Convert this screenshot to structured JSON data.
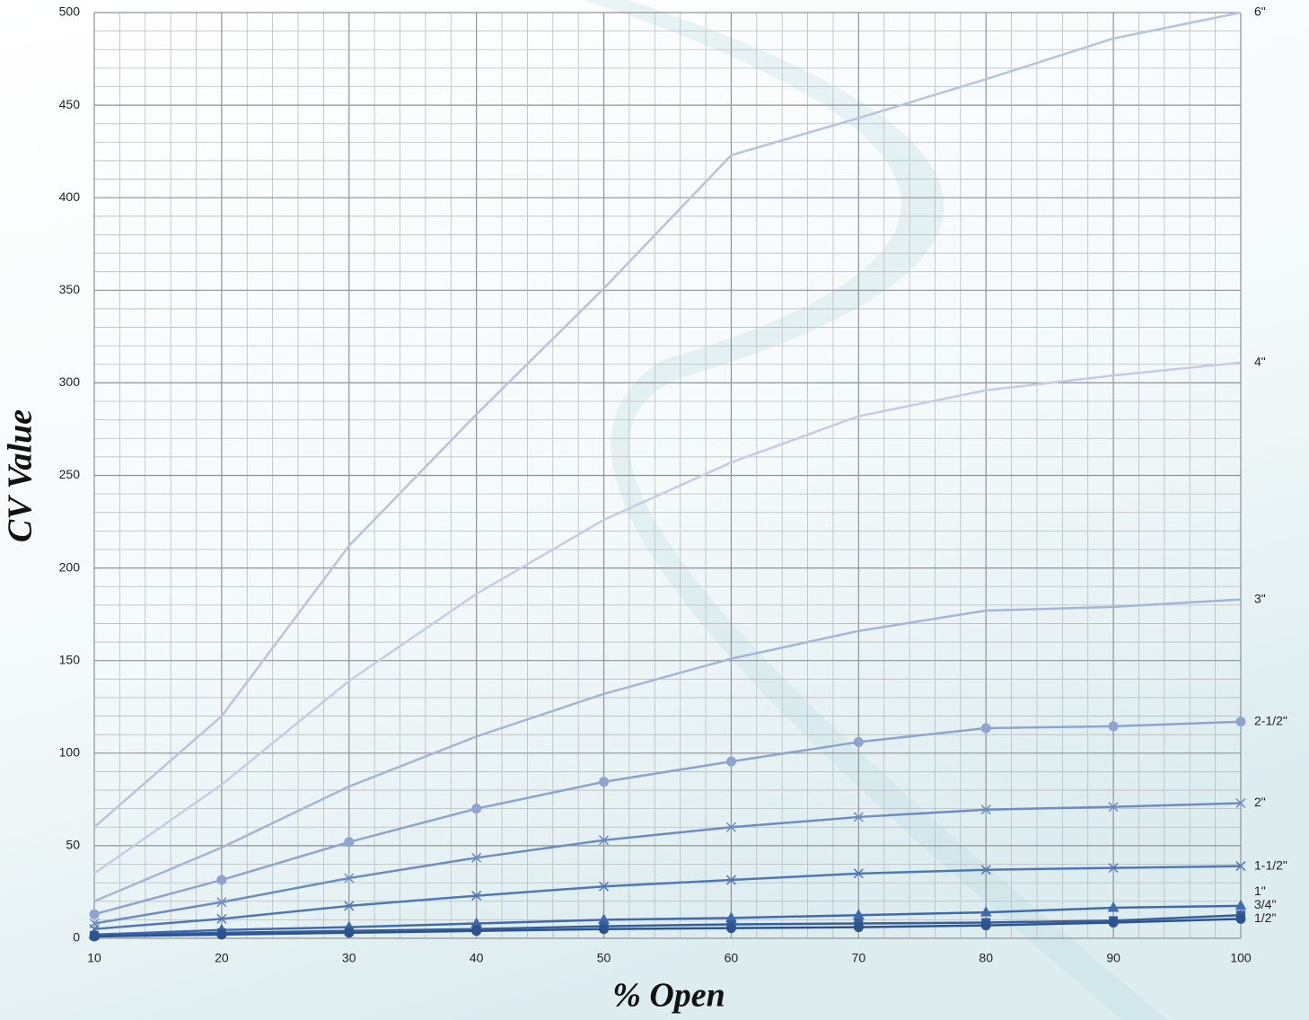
{
  "chart_data": {
    "type": "line",
    "x_label": "% Open",
    "y_label": "CV Value",
    "x": [
      10,
      20,
      30,
      40,
      50,
      60,
      70,
      80,
      90,
      100
    ],
    "xlim": [
      10,
      100
    ],
    "xticks": [
      10,
      20,
      30,
      40,
      50,
      60,
      70,
      80,
      90,
      100
    ],
    "ylim": [
      0,
      500
    ],
    "yticks": [
      0,
      50,
      100,
      150,
      200,
      250,
      300,
      350,
      400,
      450,
      500
    ],
    "grid": true,
    "series": [
      {
        "name": "6\"",
        "color": "#b6c4df",
        "marker": "none",
        "values": [
          60,
          120,
          212,
          283,
          351,
          423,
          443,
          464,
          486,
          500
        ]
      },
      {
        "name": "4\"",
        "color": "#c3cde5",
        "marker": "none",
        "values": [
          35,
          83,
          139,
          186,
          226,
          257,
          282,
          296,
          304,
          311
        ]
      },
      {
        "name": "3\"",
        "color": "#a5b5d7",
        "marker": "none",
        "values": [
          20,
          49,
          82,
          109,
          132,
          151,
          166,
          177,
          179,
          183
        ]
      },
      {
        "name": "2-1/2\"",
        "color": "#8ea3cf",
        "marker": "circle",
        "values": [
          13,
          31.5,
          52,
          70,
          84.5,
          95.5,
          106,
          113.5,
          114.5,
          117
        ]
      },
      {
        "name": "2\"",
        "color": "#6d8cc4",
        "marker": "cross",
        "values": [
          8,
          19.5,
          32.5,
          43.5,
          53,
          60,
          65.5,
          69.5,
          71,
          73
        ]
      },
      {
        "name": "1-1/2\"",
        "color": "#4f77b8",
        "marker": "cross",
        "values": [
          5,
          10.5,
          17.5,
          23,
          28,
          31.5,
          35,
          37,
          38,
          39
        ]
      },
      {
        "name": "1\"",
        "color": "#3f6aae",
        "marker": "triangle",
        "values": [
          2,
          4.5,
          6,
          8,
          10,
          11,
          12.5,
          14,
          16.5,
          17.5
        ]
      },
      {
        "name": "3/4\"",
        "color": "#355e9f",
        "marker": "square",
        "values": [
          1.5,
          3,
          4,
          5,
          6.5,
          7.5,
          8,
          8.5,
          9.5,
          12.5
        ]
      },
      {
        "name": "1/2\"",
        "color": "#2c5390",
        "marker": "circle",
        "values": [
          1,
          2,
          3,
          4,
          5,
          5.5,
          6,
          7,
          8.5,
          10.5
        ]
      }
    ]
  }
}
